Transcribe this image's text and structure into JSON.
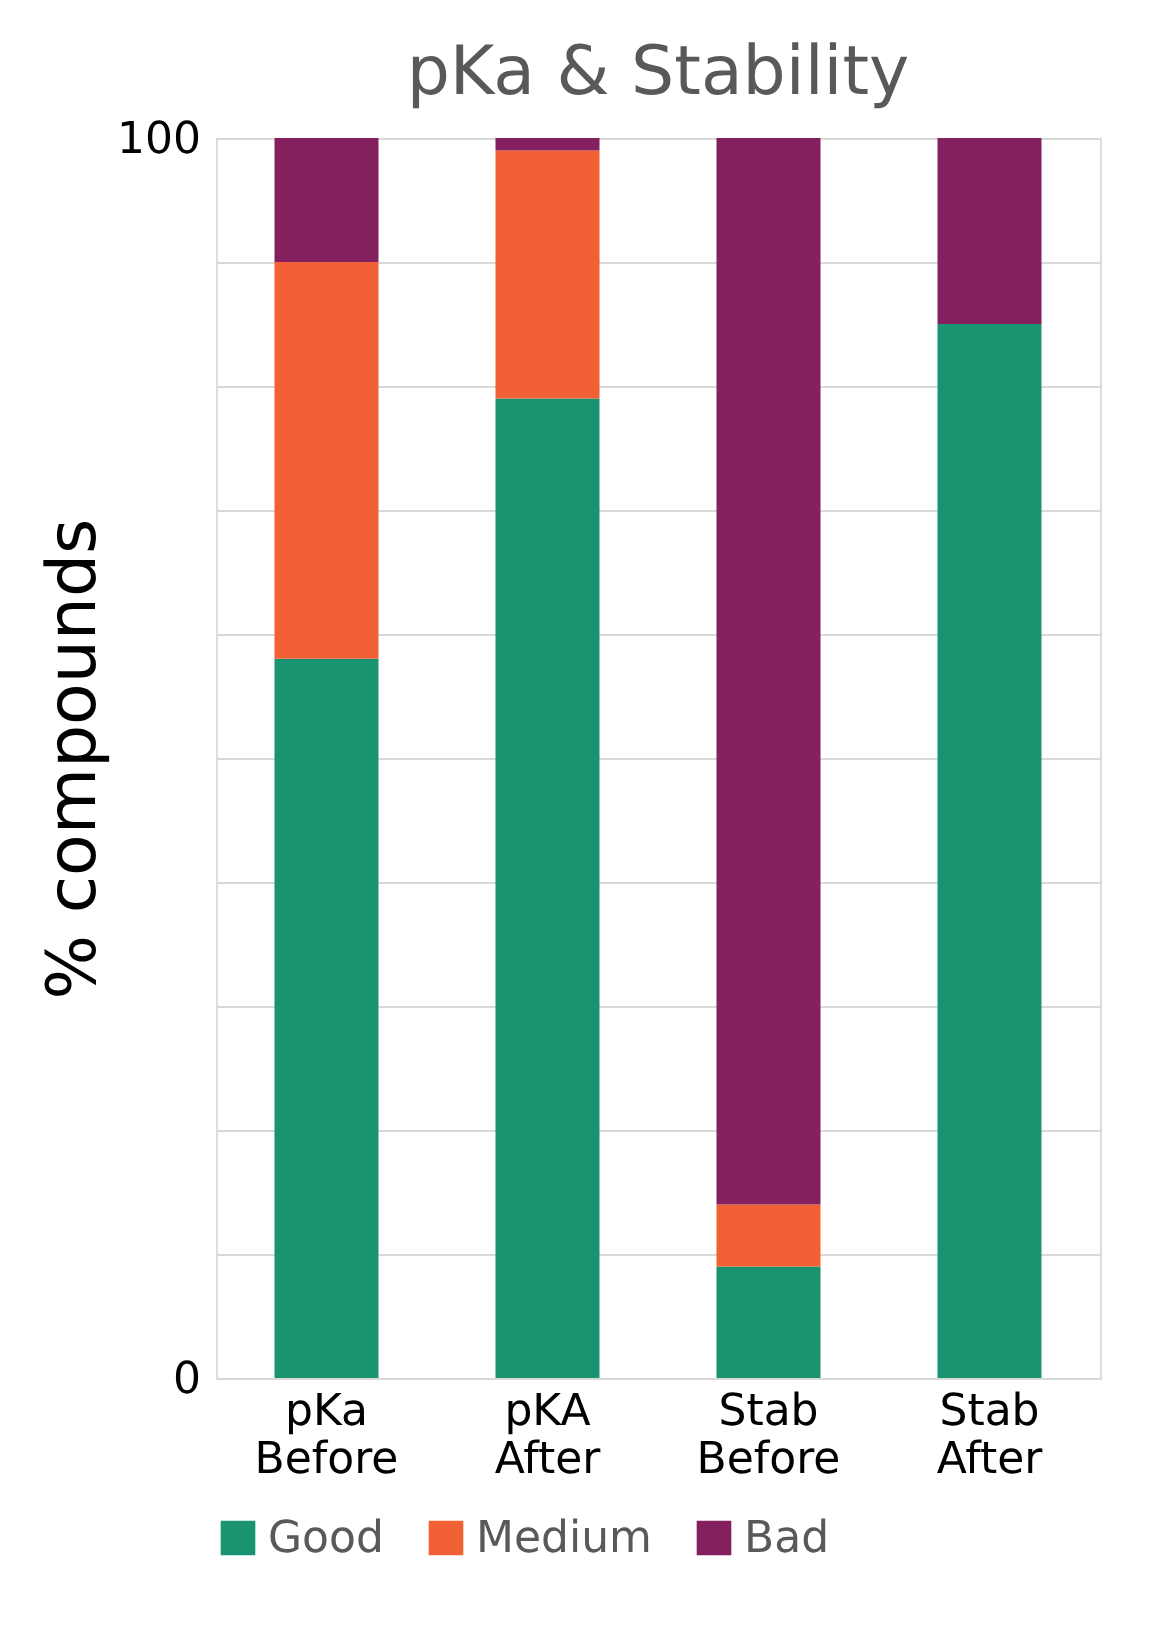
{
  "chart_data": {
    "type": "bar",
    "title": "pKa & Stability",
    "ylabel": "% compounds",
    "stacked": true,
    "categories": [
      "pKa Before",
      "pKA After",
      "Stab Before",
      "Stab After"
    ],
    "series": [
      {
        "name": "Good",
        "color": "#1a9370",
        "values": [
          58,
          79,
          9,
          85
        ]
      },
      {
        "name": "Medium",
        "color": "#f26135",
        "values": [
          32,
          20,
          5,
          0
        ]
      },
      {
        "name": "Bad",
        "color": "#84205e",
        "values": [
          10,
          1,
          86,
          15
        ]
      }
    ],
    "ylim": [
      0,
      100
    ],
    "yticks": [
      0,
      {
        "value": 10,
        "label": null
      },
      {
        "value": 20,
        "label": null
      },
      {
        "value": 30,
        "label": null
      },
      {
        "value": 40,
        "label": null
      },
      {
        "value": 50,
        "label": null
      },
      {
        "value": 60,
        "label": null
      },
      {
        "value": 70,
        "label": null
      },
      {
        "value": 80,
        "label": null
      },
      {
        "value": 90,
        "label": null
      },
      100
    ],
    "grid": "y",
    "legend": "bottom"
  }
}
